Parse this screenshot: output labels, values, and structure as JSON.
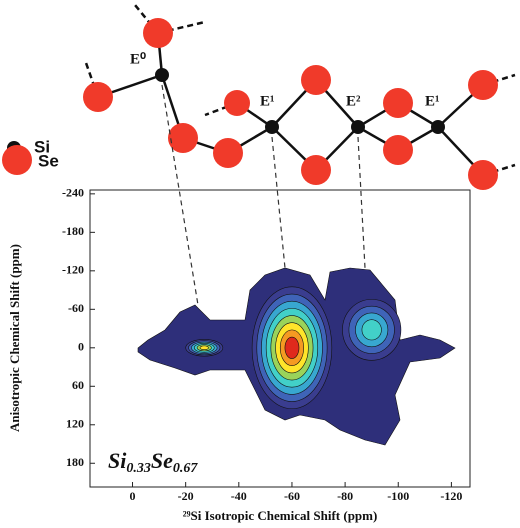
{
  "chart_data": {
    "type": "contour",
    "xlabel": "²⁹Si Isotropic Chemical Shift (ppm)",
    "ylabel": "Anisotropic Chemical Shift (ppm)",
    "xlim": [
      16,
      -127
    ],
    "xticks": [
      0,
      -20,
      -40,
      -60,
      -80,
      -100,
      -120
    ],
    "ylim": [
      -246,
      217
    ],
    "yticks": [
      -240,
      -180,
      -120,
      -60,
      0,
      60,
      120,
      180
    ],
    "compound": [
      "Si",
      "0.33",
      "Se",
      "0.67"
    ],
    "legend": [
      "Si",
      "Se"
    ],
    "sites": [
      "E⁰",
      "E¹",
      "E²",
      "E¹"
    ],
    "peaks": [
      {
        "x": -27,
        "y": 0,
        "x_width": 14,
        "y_width": 26,
        "intensity": 0.7
      },
      {
        "x": -60,
        "y": 0,
        "x_width": 30,
        "y_width": 190,
        "intensity": 1
      },
      {
        "x": -90,
        "y": -28,
        "x_width": 22,
        "y_width": 95,
        "intensity": 0.45
      }
    ]
  }
}
